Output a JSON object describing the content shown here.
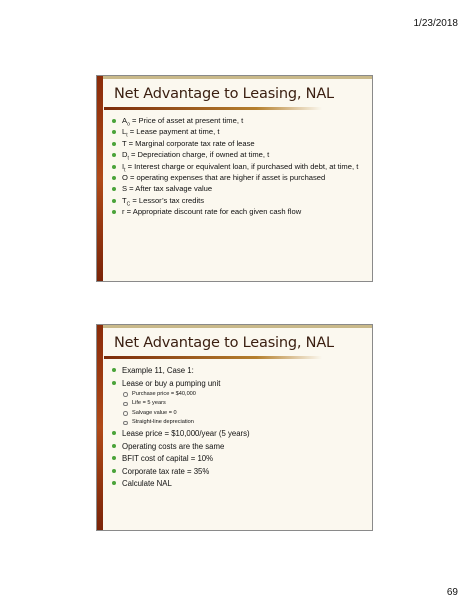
{
  "page": {
    "date": "1/23/2018",
    "number": "69"
  },
  "slide1": {
    "title": "Net Advantage to Leasing, NAL",
    "bullets": [
      {
        "sym": "A",
        "sub": "o",
        "text": " = Price of asset at present time, t"
      },
      {
        "sym": "L",
        "sub": "t",
        "text": " = Lease payment at time, t"
      },
      {
        "sym": "",
        "sub": "",
        "text": "T = Marginal corporate tax rate of lease"
      },
      {
        "sym": "D",
        "sub": "t",
        "text": " = Depreciation charge, if owned at time, t"
      },
      {
        "sym": "I",
        "sub": "t",
        "text": " = Interest charge or equivalent loan, if purchased with debt, at time, t"
      },
      {
        "sym": "",
        "sub": "",
        "text": "O = operating expenses that are higher if asset is purchased"
      },
      {
        "sym": "",
        "sub": "",
        "text": "S = After tax salvage value"
      },
      {
        "sym": "T",
        "sub": "C",
        "text": " = Lessor’s tax credits"
      },
      {
        "sym": "",
        "sub": "",
        "text": "r = Appropriate discount rate for each given cash flow"
      }
    ]
  },
  "slide2": {
    "title": "Net Advantage to Leasing, NAL",
    "b1": "Example 11, Case 1:",
    "b2": "Lease or buy a pumping unit",
    "subs": [
      "Purchase price = $40,000",
      "Life = 5 years",
      "Salvage value = 0",
      "Straight-line depreciation"
    ],
    "b3": "Lease price = $10,000/year (5 years)",
    "b4": "Operating costs are the same",
    "b5": "BFIT cost of capital = 10%",
    "b6": "Corporate tax rate = 35%",
    "b7": "Calculate NAL"
  }
}
